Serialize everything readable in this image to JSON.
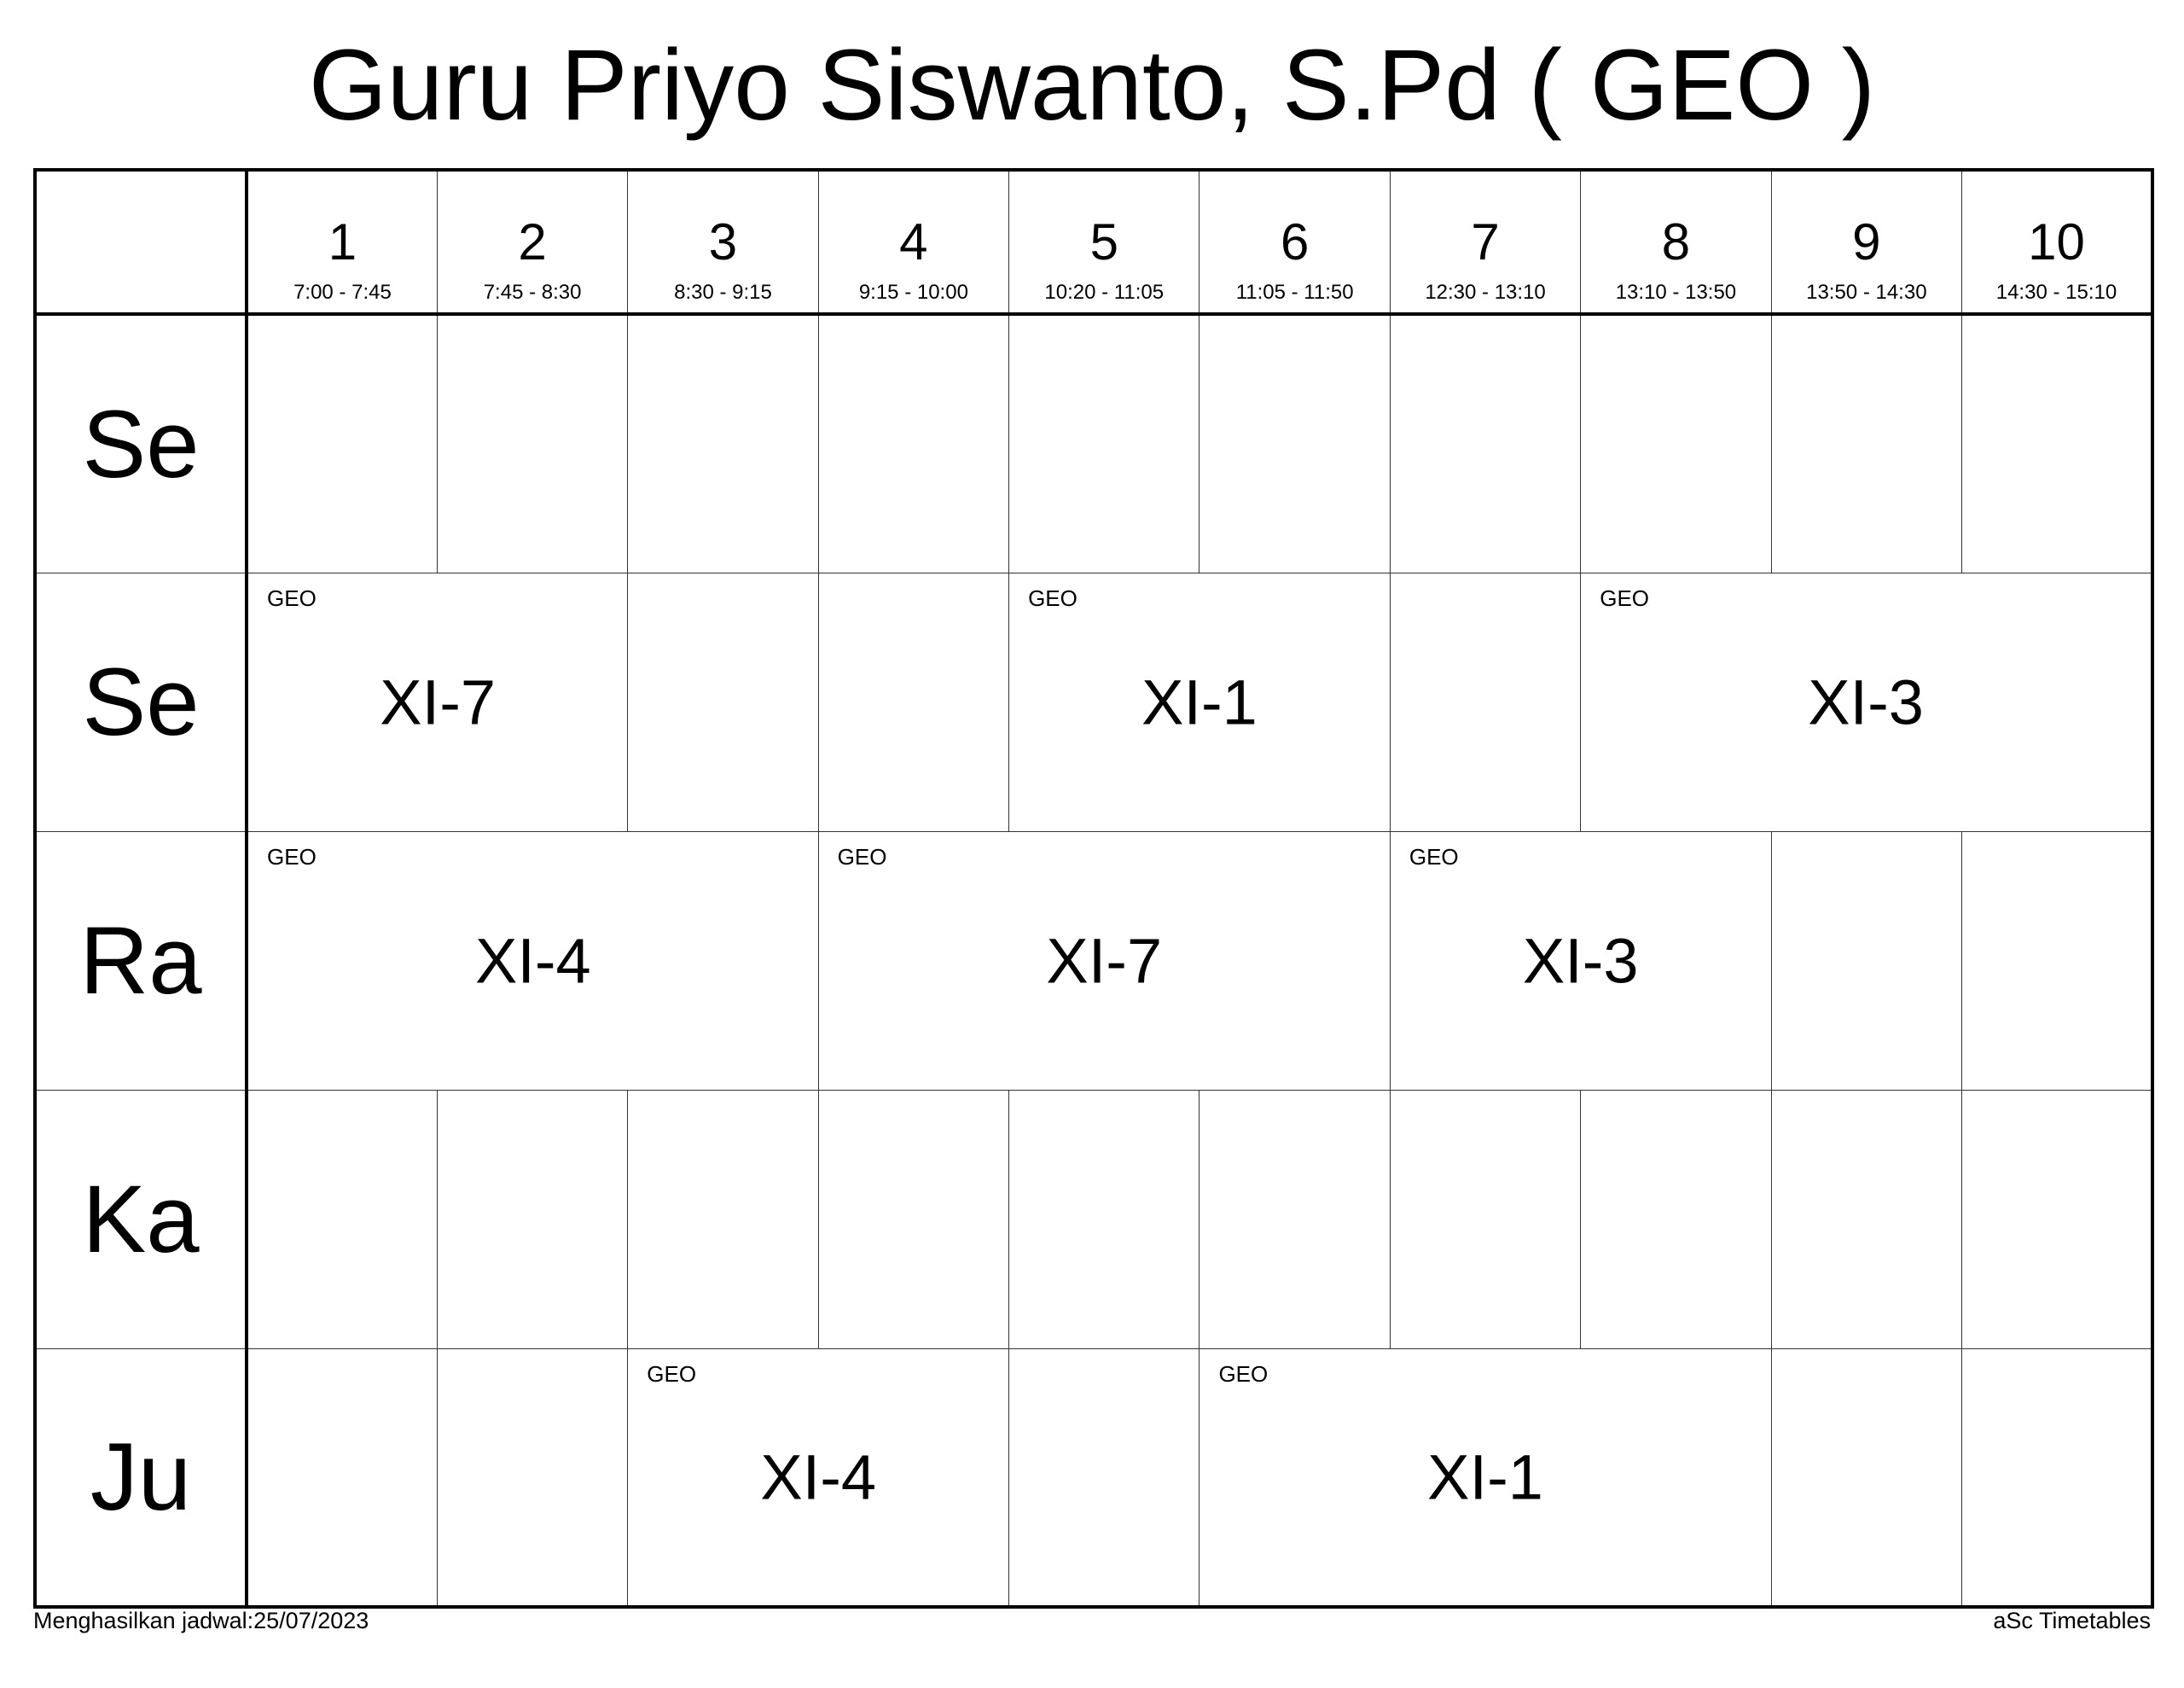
{
  "title": "Guru Priyo Siswanto, S.Pd ( GEO )",
  "periods": [
    {
      "num": "1",
      "time": "7:00 - 7:45"
    },
    {
      "num": "2",
      "time": "7:45 - 8:30"
    },
    {
      "num": "3",
      "time": "8:30 - 9:15"
    },
    {
      "num": "4",
      "time": "9:15 - 10:00"
    },
    {
      "num": "5",
      "time": "10:20 - 11:05"
    },
    {
      "num": "6",
      "time": "11:05 - 11:50"
    },
    {
      "num": "7",
      "time": "12:30 - 13:10"
    },
    {
      "num": "8",
      "time": "13:10 - 13:50"
    },
    {
      "num": "9",
      "time": "13:50 - 14:30"
    },
    {
      "num": "10",
      "time": "14:30 - 15:10"
    }
  ],
  "days": [
    {
      "label": "Se",
      "cells": [
        {
          "span": 1
        },
        {
          "span": 1
        },
        {
          "span": 1
        },
        {
          "span": 1
        },
        {
          "span": 1
        },
        {
          "span": 1
        },
        {
          "span": 1
        },
        {
          "span": 1
        },
        {
          "span": 1
        },
        {
          "span": 1
        }
      ]
    },
    {
      "label": "Se",
      "cells": [
        {
          "span": 2,
          "subject": "GEO",
          "class": "XI-7"
        },
        {
          "span": 1
        },
        {
          "span": 1
        },
        {
          "span": 2,
          "subject": "GEO",
          "class": "XI-1"
        },
        {
          "span": 1
        },
        {
          "span": 3,
          "subject": "GEO",
          "class": "XI-3"
        }
      ]
    },
    {
      "label": "Ra",
      "cells": [
        {
          "span": 3,
          "subject": "GEO",
          "class": "XI-4"
        },
        {
          "span": 3,
          "subject": "GEO",
          "class": "XI-7"
        },
        {
          "span": 2,
          "subject": "GEO",
          "class": "XI-3"
        },
        {
          "span": 1
        },
        {
          "span": 1
        }
      ]
    },
    {
      "label": "Ka",
      "cells": [
        {
          "span": 1
        },
        {
          "span": 1
        },
        {
          "span": 1
        },
        {
          "span": 1
        },
        {
          "span": 1
        },
        {
          "span": 1
        },
        {
          "span": 1
        },
        {
          "span": 1
        },
        {
          "span": 1
        },
        {
          "span": 1
        }
      ]
    },
    {
      "label": "Ju",
      "cells": [
        {
          "span": 1
        },
        {
          "span": 1
        },
        {
          "span": 2,
          "subject": "GEO",
          "class": "XI-4"
        },
        {
          "span": 1
        },
        {
          "span": 3,
          "subject": "GEO",
          "class": "XI-1"
        },
        {
          "span": 1
        },
        {
          "span": 1
        }
      ]
    }
  ],
  "footer": {
    "generated": "Menghasilkan jadwal:25/07/2023",
    "brand": "aSc Timetables"
  }
}
